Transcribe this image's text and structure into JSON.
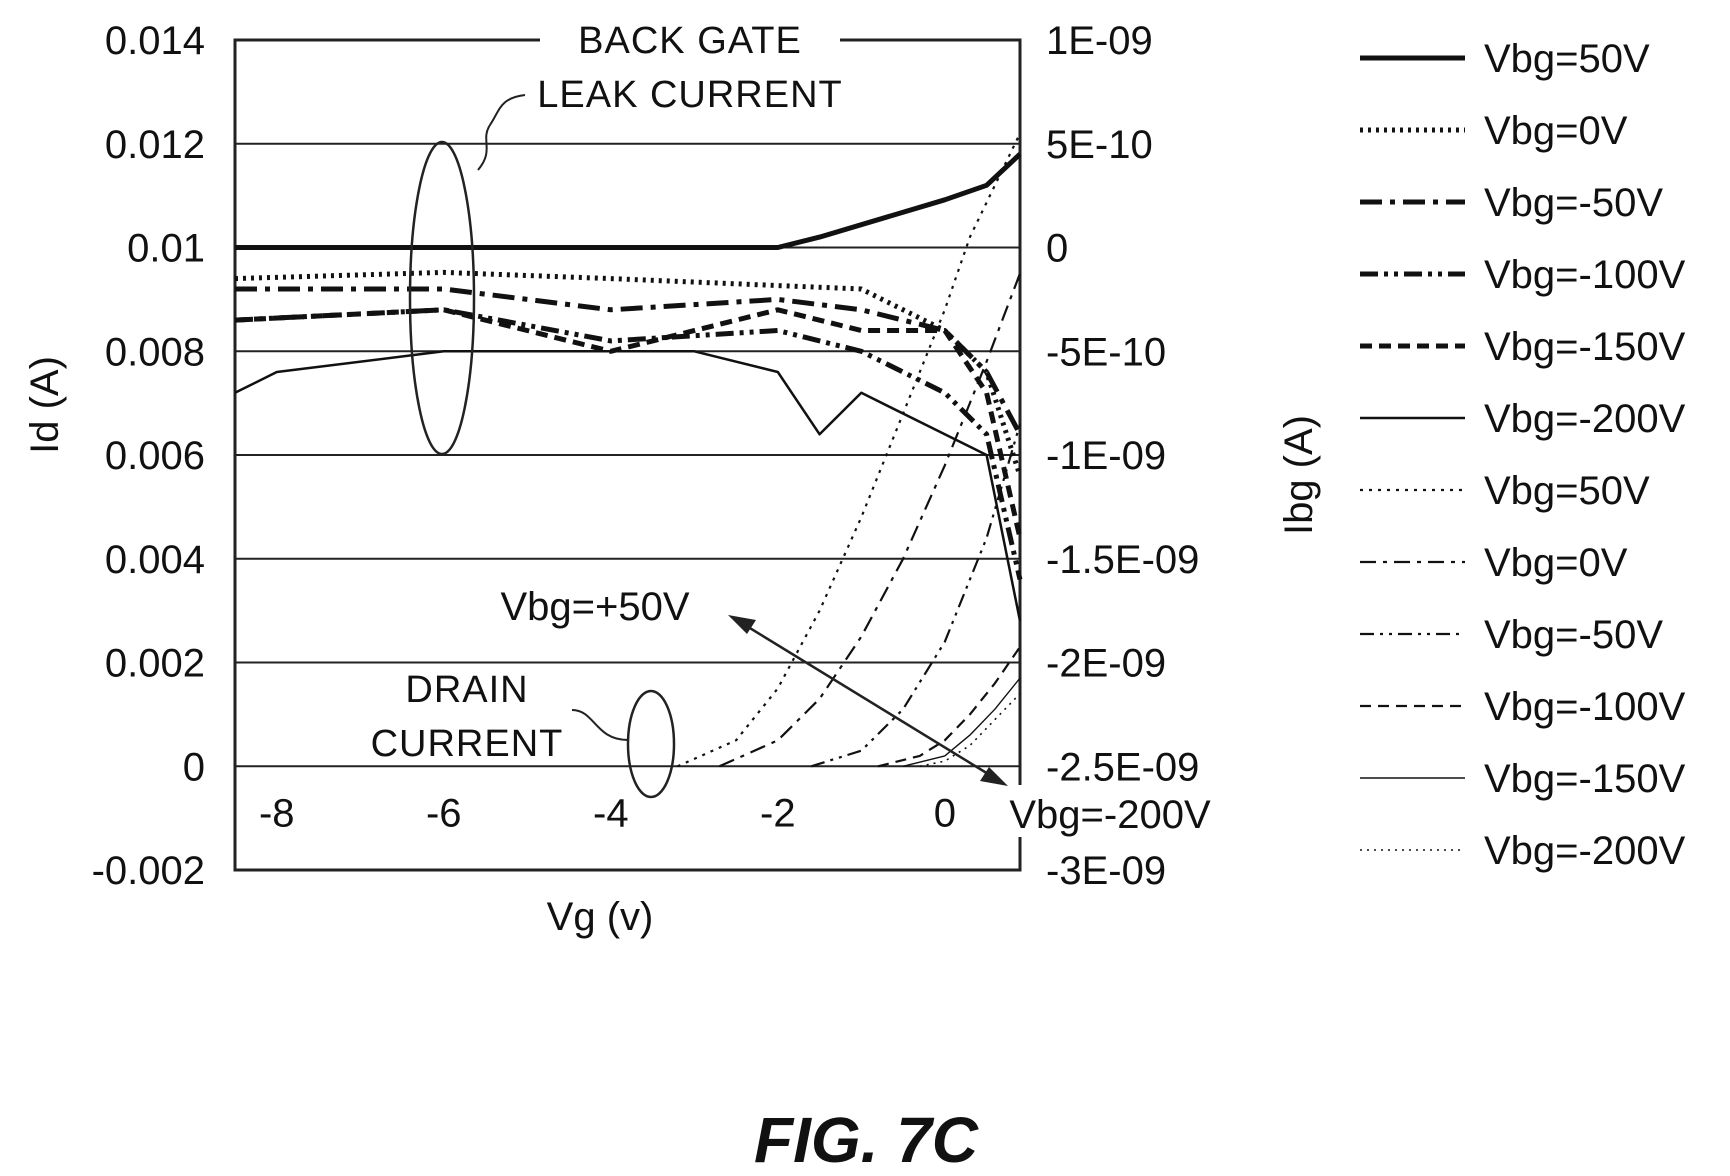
{
  "chart_data": {
    "type": "line",
    "xlabel": "Vg (v)",
    "ylabel": "Id (A)",
    "y2label": "Ibg (A)",
    "xlim": [
      -8.5,
      0.9
    ],
    "ylim": [
      -0.002,
      0.014
    ],
    "y2lim": [
      -3e-09,
      1e-09
    ],
    "x_ticks": [
      "-8",
      "-6",
      "-4",
      "-2",
      "0"
    ],
    "x_tick_values": [
      -8,
      -6,
      -4,
      -2,
      0
    ],
    "y_ticks": [
      "0.014",
      "0.012",
      "0.01",
      "0.008",
      "0.006",
      "0.004",
      "0.002",
      "0",
      "-0.002"
    ],
    "y_tick_values": [
      0.014,
      0.012,
      0.01,
      0.008,
      0.006,
      0.004,
      0.002,
      0,
      -0.002
    ],
    "y2_ticks": [
      "1E-09",
      "5E-10",
      "0",
      "-5E-10",
      "-1E-09",
      "-1.5E-09",
      "-2E-09",
      "-2.5E-09",
      "-3E-09"
    ],
    "y2_tick_values": [
      1e-09,
      5e-10,
      0,
      -5e-10,
      -1e-09,
      -1.5e-09,
      -2e-09,
      -2.5e-09,
      -3e-09
    ],
    "grid": "horizontal",
    "legend_position": "right",
    "annotations": {
      "back_gate": "BACK GATE",
      "leak_current": "LEAK CURRENT",
      "drain": "DRAIN",
      "current": "CURRENT",
      "vbg_plus": "Vbg=+50V",
      "vbg_minus": "Vbg=-200V"
    },
    "series": [
      {
        "name": "Vbg=50V",
        "axis": "right",
        "style": "solid-thick",
        "x": [
          -8.5,
          -6,
          -4,
          -2,
          -1.5,
          0,
          0.5,
          0.9
        ],
        "y": [
          0,
          0,
          0,
          0,
          5e-11,
          2.3e-10,
          3e-10,
          4.5e-10
        ]
      },
      {
        "name": "Vbg=0V",
        "axis": "right",
        "style": "dotted-thick",
        "x": [
          -8.5,
          -6,
          -4,
          -1,
          0,
          0.5,
          0.9
        ],
        "y": [
          -1.5e-10,
          -1.2e-10,
          -1.5e-10,
          -2e-10,
          -4e-10,
          -6e-10,
          -1.1e-09
        ]
      },
      {
        "name": "Vbg=-50V",
        "axis": "right",
        "style": "dashdot-thick",
        "x": [
          -8.5,
          -6,
          -4,
          -2,
          -1,
          0,
          0.5,
          0.9
        ],
        "y": [
          -2e-10,
          -2e-10,
          -3e-10,
          -2.5e-10,
          -3e-10,
          -4e-10,
          -6e-10,
          -9e-10
        ]
      },
      {
        "name": "Vbg=-100V",
        "axis": "right",
        "style": "dashdotdot-thick",
        "x": [
          -8.5,
          -6,
          -4,
          -2,
          -1,
          0,
          0.5,
          0.9
        ],
        "y": [
          -3.5e-10,
          -3e-10,
          -4.5e-10,
          -4e-10,
          -5e-10,
          -7e-10,
          -9e-10,
          -1.6e-09
        ]
      },
      {
        "name": "Vbg=-150V",
        "axis": "right",
        "style": "dashed-thick",
        "x": [
          -8.5,
          -6,
          -4,
          -2,
          -1,
          0,
          0.5,
          0.9
        ],
        "y": [
          -3.5e-10,
          -3e-10,
          -5e-10,
          -3e-10,
          -4e-10,
          -4e-10,
          -7e-10,
          -1.4e-09
        ]
      },
      {
        "name": "Vbg=-200V",
        "axis": "right",
        "style": "solid-thin",
        "x": [
          -8.5,
          -8,
          -6,
          -4,
          -3,
          -2,
          -1.5,
          -1,
          0,
          0.5,
          0.9
        ],
        "y": [
          -7e-10,
          -6e-10,
          -5e-10,
          -5e-10,
          -5e-10,
          -6e-10,
          -9e-10,
          -7e-10,
          -9e-10,
          -1e-09,
          -1.8e-09
        ]
      },
      {
        "name": "Vbg=50V",
        "axis": "left",
        "style": "dotted-thin",
        "x": [
          -3.2,
          -2.5,
          -2,
          -1.5,
          -1,
          -0.5,
          0,
          0.3,
          0.6,
          0.9
        ],
        "y": [
          0,
          0.0005,
          0.0015,
          0.003,
          0.0048,
          0.0068,
          0.0088,
          0.0102,
          0.0112,
          0.0122
        ]
      },
      {
        "name": "Vbg=0V",
        "axis": "left",
        "style": "dashdot-thin",
        "x": [
          -2.7,
          -2,
          -1.5,
          -1,
          -0.5,
          0,
          0.5,
          0.9
        ],
        "y": [
          0,
          0.0005,
          0.0013,
          0.0025,
          0.004,
          0.0058,
          0.0078,
          0.0095
        ]
      },
      {
        "name": "Vbg=-50V",
        "axis": "left",
        "style": "dashdotdot-thin",
        "x": [
          -1.6,
          -1,
          -0.5,
          0,
          0.5,
          0.9
        ],
        "y": [
          0,
          0.0003,
          0.0011,
          0.0024,
          0.0044,
          0.0066
        ]
      },
      {
        "name": "Vbg=-100V",
        "axis": "left",
        "style": "dashed-thin",
        "x": [
          -0.8,
          -0.3,
          0,
          0.3,
          0.6,
          0.9
        ],
        "y": [
          0,
          0.0002,
          0.0005,
          0.001,
          0.0016,
          0.0023
        ]
      },
      {
        "name": "Vbg=-150V",
        "axis": "left",
        "style": "solid-hair",
        "x": [
          -0.5,
          0,
          0.3,
          0.6,
          0.9
        ],
        "y": [
          0,
          0.0002,
          0.0006,
          0.0011,
          0.0017
        ]
      },
      {
        "name": "Vbg=-200V",
        "axis": "left",
        "style": "dotted-hair",
        "x": [
          -0.3,
          0,
          0.3,
          0.6,
          0.9
        ],
        "y": [
          0,
          0.0001,
          0.0004,
          0.0009,
          0.0014
        ]
      }
    ]
  },
  "figure_label": "FIG. 7C"
}
